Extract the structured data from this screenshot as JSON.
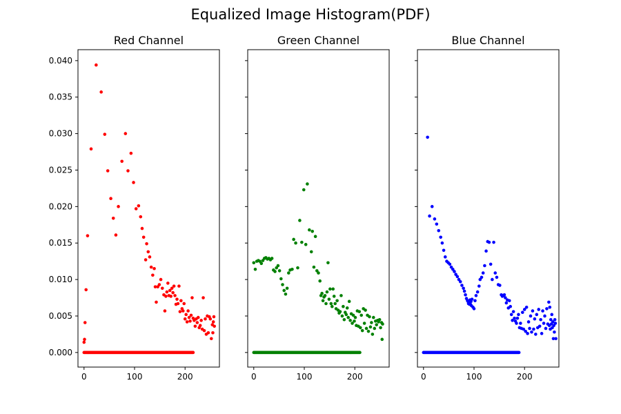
{
  "title": "Equalized Image Histogram(PDF)",
  "chart_data": [
    {
      "type": "scatter",
      "title": "Red Channel",
      "color": "#ff0000",
      "xlim": [
        -12,
        268
      ],
      "ylim": [
        -0.002,
        0.0415
      ],
      "xticks": [
        0,
        100,
        200
      ],
      "yticks": [
        0.0,
        0.005,
        0.01,
        0.015,
        0.02,
        0.025,
        0.03,
        0.035,
        0.04
      ],
      "ytick_labels": [
        "0.000",
        "0.005",
        "0.010",
        "0.015",
        "0.020",
        "0.025",
        "0.030",
        "0.035",
        "0.040"
      ],
      "zero_x_range": [
        0,
        216
      ],
      "points": [
        [
          0,
          0.0014
        ],
        [
          1,
          0.0018
        ],
        [
          2,
          0.0041
        ],
        [
          4,
          0.0086
        ],
        [
          7,
          0.016
        ],
        [
          14,
          0.0279
        ],
        [
          24,
          0.0394
        ],
        [
          34,
          0.0357
        ],
        [
          41,
          0.0299
        ],
        [
          47,
          0.0249
        ],
        [
          53,
          0.0211
        ],
        [
          58,
          0.0184
        ],
        [
          63,
          0.0161
        ],
        [
          68,
          0.02
        ],
        [
          75,
          0.0262
        ],
        [
          82,
          0.03
        ],
        [
          87,
          0.0249
        ],
        [
          93,
          0.0273
        ],
        [
          98,
          0.0233
        ],
        [
          103,
          0.0197
        ],
        [
          108,
          0.0201
        ],
        [
          112,
          0.0186
        ],
        [
          115,
          0.017
        ],
        [
          118,
          0.0158
        ],
        [
          122,
          0.0127
        ],
        [
          124,
          0.0149
        ],
        [
          127,
          0.0138
        ],
        [
          130,
          0.0131
        ],
        [
          133,
          0.0117
        ],
        [
          136,
          0.0106
        ],
        [
          139,
          0.0115
        ],
        [
          141,
          0.009
        ],
        [
          143,
          0.0069
        ],
        [
          146,
          0.009
        ],
        [
          149,
          0.0093
        ],
        [
          152,
          0.01
        ],
        [
          155,
          0.0088
        ],
        [
          158,
          0.0079
        ],
        [
          160,
          0.0057
        ],
        [
          162,
          0.0077
        ],
        [
          164,
          0.0083
        ],
        [
          166,
          0.0095
        ],
        [
          168,
          0.0078
        ],
        [
          170,
          0.0085
        ],
        [
          172,
          0.0077
        ],
        [
          174,
          0.0088
        ],
        [
          176,
          0.0082
        ],
        [
          178,
          0.0091
        ],
        [
          180,
          0.0078
        ],
        [
          182,
          0.0066
        ],
        [
          184,
          0.0073
        ],
        [
          186,
          0.0067
        ],
        [
          188,
          0.0091
        ],
        [
          190,
          0.0056
        ],
        [
          192,
          0.0071
        ],
        [
          194,
          0.006
        ],
        [
          196,
          0.0057
        ],
        [
          198,
          0.0067
        ],
        [
          200,
          0.0046
        ],
        [
          202,
          0.0052
        ],
        [
          204,
          0.0042
        ],
        [
          206,
          0.0057
        ],
        [
          208,
          0.0048
        ],
        [
          210,
          0.0043
        ],
        [
          212,
          0.0051
        ],
        [
          214,
          0.0075
        ],
        [
          216,
          0.0047
        ],
        [
          218,
          0.0044
        ],
        [
          220,
          0.0036
        ],
        [
          222,
          0.0046
        ],
        [
          224,
          0.0041
        ],
        [
          226,
          0.0048
        ],
        [
          228,
          0.0034
        ],
        [
          230,
          0.0037
        ],
        [
          232,
          0.0044
        ],
        [
          234,
          0.0032
        ],
        [
          236,
          0.0075
        ],
        [
          238,
          0.003
        ],
        [
          240,
          0.0046
        ],
        [
          242,
          0.0025
        ],
        [
          244,
          0.005
        ],
        [
          246,
          0.0027
        ],
        [
          248,
          0.0049
        ],
        [
          250,
          0.0046
        ],
        [
          252,
          0.0019
        ],
        [
          254,
          0.0038
        ],
        [
          255,
          0.0027
        ],
        [
          256,
          0.0042
        ],
        [
          257,
          0.0049
        ],
        [
          258,
          0.0036
        ]
      ]
    },
    {
      "type": "scatter",
      "title": "Green Channel",
      "color": "#008000",
      "xlim": [
        -12,
        268
      ],
      "ylim": [
        -0.002,
        0.0415
      ],
      "xticks": [
        0,
        100,
        200
      ],
      "yticks": [
        0.0,
        0.005,
        0.01,
        0.015,
        0.02,
        0.025,
        0.03,
        0.035,
        0.04
      ],
      "zero_x_range": [
        0,
        210
      ],
      "points": [
        [
          0,
          0.0123
        ],
        [
          3,
          0.0114
        ],
        [
          6,
          0.0125
        ],
        [
          9,
          0.0126
        ],
        [
          12,
          0.0125
        ],
        [
          15,
          0.0122
        ],
        [
          18,
          0.0126
        ],
        [
          21,
          0.0129
        ],
        [
          24,
          0.013
        ],
        [
          27,
          0.0128
        ],
        [
          30,
          0.0129
        ],
        [
          33,
          0.0127
        ],
        [
          36,
          0.0129
        ],
        [
          39,
          0.0113
        ],
        [
          42,
          0.0111
        ],
        [
          45,
          0.0116
        ],
        [
          48,
          0.0119
        ],
        [
          51,
          0.0112
        ],
        [
          54,
          0.0101
        ],
        [
          57,
          0.0093
        ],
        [
          60,
          0.0085
        ],
        [
          63,
          0.008
        ],
        [
          66,
          0.0088
        ],
        [
          69,
          0.0109
        ],
        [
          72,
          0.0113
        ],
        [
          76,
          0.0114
        ],
        [
          79,
          0.0155
        ],
        [
          83,
          0.015
        ],
        [
          87,
          0.0116
        ],
        [
          91,
          0.0181
        ],
        [
          95,
          0.0151
        ],
        [
          99,
          0.0223
        ],
        [
          103,
          0.0148
        ],
        [
          106,
          0.0231
        ],
        [
          110,
          0.0168
        ],
        [
          114,
          0.0138
        ],
        [
          116,
          0.0166
        ],
        [
          119,
          0.0117
        ],
        [
          122,
          0.0159
        ],
        [
          125,
          0.0112
        ],
        [
          128,
          0.0109
        ],
        [
          131,
          0.0098
        ],
        [
          133,
          0.0078
        ],
        [
          135,
          0.0081
        ],
        [
          137,
          0.0071
        ],
        [
          139,
          0.0076
        ],
        [
          141,
          0.0078
        ],
        [
          143,
          0.0067
        ],
        [
          145,
          0.0083
        ],
        [
          147,
          0.0123
        ],
        [
          149,
          0.0073
        ],
        [
          151,
          0.0087
        ],
        [
          153,
          0.0067
        ],
        [
          155,
          0.0063
        ],
        [
          157,
          0.0087
        ],
        [
          159,
          0.0077
        ],
        [
          161,
          0.0067
        ],
        [
          163,
          0.006
        ],
        [
          165,
          0.0071
        ],
        [
          167,
          0.0058
        ],
        [
          169,
          0.0054
        ],
        [
          171,
          0.0056
        ],
        [
          173,
          0.0078
        ],
        [
          175,
          0.005
        ],
        [
          177,
          0.0063
        ],
        [
          179,
          0.0045
        ],
        [
          181,
          0.0055
        ],
        [
          183,
          0.0052
        ],
        [
          185,
          0.0061
        ],
        [
          187,
          0.0048
        ],
        [
          189,
          0.007
        ],
        [
          191,
          0.0044
        ],
        [
          193,
          0.0053
        ],
        [
          195,
          0.004
        ],
        [
          197,
          0.0051
        ],
        [
          199,
          0.0043
        ],
        [
          201,
          0.0048
        ],
        [
          203,
          0.0037
        ],
        [
          205,
          0.0057
        ],
        [
          207,
          0.0036
        ],
        [
          209,
          0.0056
        ],
        [
          211,
          0.0034
        ],
        [
          213,
          0.0051
        ],
        [
          215,
          0.003
        ],
        [
          217,
          0.006
        ],
        [
          219,
          0.004
        ],
        [
          221,
          0.0058
        ],
        [
          223,
          0.0033
        ],
        [
          225,
          0.0051
        ],
        [
          227,
          0.0029
        ],
        [
          229,
          0.0049
        ],
        [
          231,
          0.0035
        ],
        [
          233,
          0.0041
        ],
        [
          235,
          0.0025
        ],
        [
          237,
          0.0048
        ],
        [
          239,
          0.0033
        ],
        [
          241,
          0.0043
        ],
        [
          243,
          0.0038
        ],
        [
          245,
          0.0044
        ],
        [
          247,
          0.0042
        ],
        [
          249,
          0.0045
        ],
        [
          251,
          0.0034
        ],
        [
          253,
          0.0041
        ],
        [
          254,
          0.0018
        ],
        [
          255,
          0.0039
        ]
      ]
    },
    {
      "type": "scatter",
      "title": "Blue Channel",
      "color": "#0000ff",
      "xlim": [
        -12,
        268
      ],
      "ylim": [
        -0.002,
        0.0415
      ],
      "xticks": [
        0,
        100,
        200
      ],
      "yticks": [
        0.0,
        0.005,
        0.01,
        0.015,
        0.02,
        0.025,
        0.03,
        0.035,
        0.04
      ],
      "zero_x_range": [
        0,
        189
      ],
      "points": [
        [
          8,
          0.0295
        ],
        [
          12,
          0.0187
        ],
        [
          17,
          0.02
        ],
        [
          22,
          0.0183
        ],
        [
          26,
          0.0176
        ],
        [
          30,
          0.0167
        ],
        [
          34,
          0.0158
        ],
        [
          37,
          0.015
        ],
        [
          40,
          0.014
        ],
        [
          43,
          0.0131
        ],
        [
          46,
          0.0125
        ],
        [
          49,
          0.0123
        ],
        [
          52,
          0.0121
        ],
        [
          55,
          0.0117
        ],
        [
          58,
          0.0114
        ],
        [
          61,
          0.0111
        ],
        [
          64,
          0.0107
        ],
        [
          67,
          0.0104
        ],
        [
          70,
          0.01
        ],
        [
          73,
          0.0097
        ],
        [
          76,
          0.0092
        ],
        [
          79,
          0.0088
        ],
        [
          81,
          0.0084
        ],
        [
          83,
          0.0079
        ],
        [
          85,
          0.0074
        ],
        [
          87,
          0.0071
        ],
        [
          88,
          0.007
        ],
        [
          89,
          0.0067
        ],
        [
          90,
          0.0069
        ],
        [
          91,
          0.0066
        ],
        [
          92,
          0.0072
        ],
        [
          93,
          0.0066
        ],
        [
          94,
          0.007
        ],
        [
          95,
          0.0064
        ],
        [
          96,
          0.0073
        ],
        [
          98,
          0.0062
        ],
        [
          100,
          0.006
        ],
        [
          102,
          0.0071
        ],
        [
          104,
          0.0078
        ],
        [
          107,
          0.0083
        ],
        [
          110,
          0.0091
        ],
        [
          112,
          0.01
        ],
        [
          115,
          0.0103
        ],
        [
          118,
          0.0109
        ],
        [
          121,
          0.0119
        ],
        [
          124,
          0.0139
        ],
        [
          127,
          0.0152
        ],
        [
          130,
          0.0151
        ],
        [
          133,
          0.0121
        ],
        [
          136,
          0.01
        ],
        [
          139,
          0.0151
        ],
        [
          142,
          0.0109
        ],
        [
          145,
          0.0103
        ],
        [
          148,
          0.0093
        ],
        [
          151,
          0.0092
        ],
        [
          154,
          0.0079
        ],
        [
          156,
          0.0077
        ],
        [
          158,
          0.0078
        ],
        [
          160,
          0.0079
        ],
        [
          162,
          0.0075
        ],
        [
          164,
          0.0068
        ],
        [
          166,
          0.0072
        ],
        [
          168,
          0.0061
        ],
        [
          170,
          0.0071
        ],
        [
          172,
          0.0063
        ],
        [
          174,
          0.0052
        ],
        [
          176,
          0.0044
        ],
        [
          178,
          0.0056
        ],
        [
          180,
          0.0047
        ],
        [
          182,
          0.0043
        ],
        [
          184,
          0.004
        ],
        [
          186,
          0.0047
        ],
        [
          188,
          0.0052
        ],
        [
          190,
          0.0034
        ],
        [
          192,
          0.004
        ],
        [
          194,
          0.0033
        ],
        [
          196,
          0.0055
        ],
        [
          198,
          0.0032
        ],
        [
          200,
          0.0059
        ],
        [
          202,
          0.0029
        ],
        [
          204,
          0.0062
        ],
        [
          206,
          0.0026
        ],
        [
          208,
          0.0042
        ],
        [
          210,
          0.0033
        ],
        [
          212,
          0.005
        ],
        [
          214,
          0.0028
        ],
        [
          216,
          0.0057
        ],
        [
          218,
          0.0032
        ],
        [
          220,
          0.0046
        ],
        [
          222,
          0.0025
        ],
        [
          224,
          0.0052
        ],
        [
          226,
          0.0034
        ],
        [
          228,
          0.0059
        ],
        [
          230,
          0.0036
        ],
        [
          232,
          0.0045
        ],
        [
          234,
          0.0026
        ],
        [
          236,
          0.0057
        ],
        [
          238,
          0.004
        ],
        [
          240,
          0.005
        ],
        [
          242,
          0.0033
        ],
        [
          244,
          0.006
        ],
        [
          246,
          0.0039
        ],
        [
          248,
          0.0069
        ],
        [
          249,
          0.0037
        ],
        [
          250,
          0.0062
        ],
        [
          251,
          0.0032
        ],
        [
          252,
          0.0045
        ],
        [
          253,
          0.0039
        ],
        [
          254,
          0.0052
        ],
        [
          255,
          0.0034
        ],
        [
          256,
          0.0042
        ],
        [
          257,
          0.0019
        ],
        [
          258,
          0.0037
        ],
        [
          259,
          0.0028
        ],
        [
          260,
          0.0045
        ],
        [
          261,
          0.004
        ],
        [
          262,
          0.0019
        ]
      ]
    }
  ]
}
